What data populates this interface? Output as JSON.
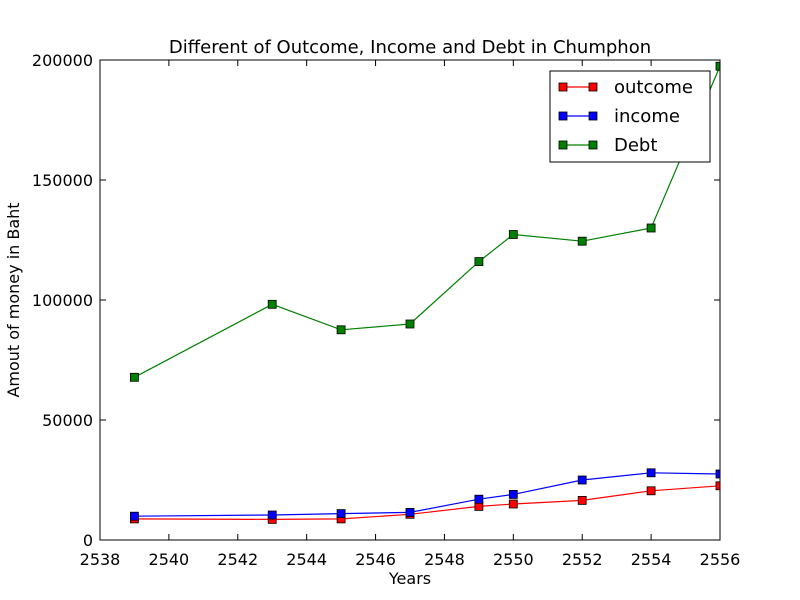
{
  "chart_data": {
    "type": "line",
    "title": "Different of Outcome, Income and Debt in Chumphon",
    "xlabel": "Years",
    "ylabel": "Amout of money in Baht",
    "xlim": [
      2538,
      2556
    ],
    "ylim": [
      0,
      200000
    ],
    "x_ticks": [
      "2538",
      "2540",
      "2542",
      "2544",
      "2546",
      "2548",
      "2550",
      "2552",
      "2554",
      "2556"
    ],
    "y_ticks": [
      "0",
      "50000",
      "100000",
      "150000",
      "200000"
    ],
    "grid": false,
    "legend_position": "top-right",
    "x": [
      2539,
      2543,
      2545,
      2547,
      2549,
      2550,
      2552,
      2554,
      2556
    ],
    "series": [
      {
        "name": "outcome",
        "color": "#ff0000",
        "marker": "square",
        "values": [
          8800,
          8600,
          8800,
          10700,
          14000,
          15000,
          16500,
          20500,
          22600
        ]
      },
      {
        "name": "income",
        "color": "#0000ff",
        "marker": "square",
        "values": [
          9900,
          10400,
          11000,
          11500,
          17000,
          19000,
          25000,
          28000,
          27500
        ]
      },
      {
        "name": "Debt",
        "color": "#008000",
        "marker": "square",
        "values": [
          67800,
          98200,
          87600,
          90000,
          116000,
          127300,
          124500,
          130000,
          197400
        ]
      }
    ]
  }
}
